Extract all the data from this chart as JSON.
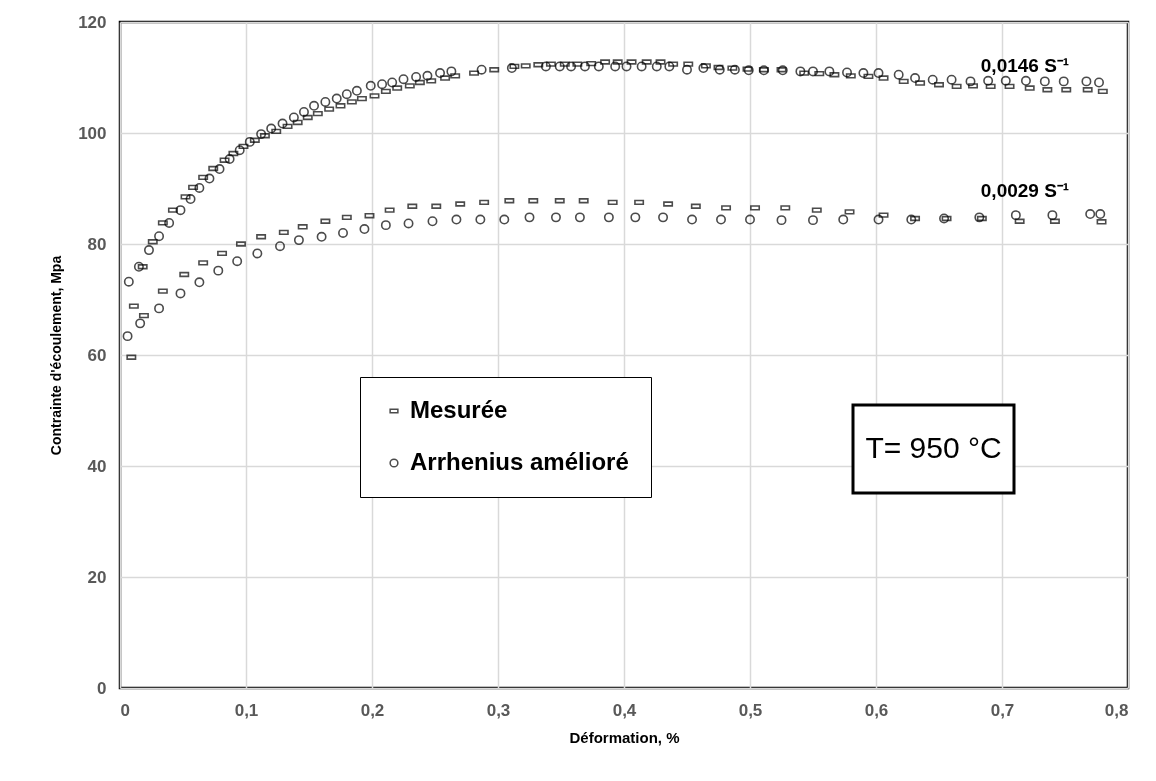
{
  "chart_data": {
    "type": "scatter",
    "xlabel": "Déformation, %",
    "ylabel": "Contrainte d'écoulement, Mpa",
    "xlim": [
      0,
      0.8
    ],
    "ylim": [
      0,
      120
    ],
    "xticks": [
      0,
      {
        "value": 0.1,
        "label": "0,1"
      },
      {
        "value": 0.2,
        "label": "0,2"
      },
      {
        "value": 0.3,
        "label": "0,3"
      },
      {
        "value": 0.4,
        "label": "0,4"
      },
      {
        "value": 0.5,
        "label": "0,5"
      },
      {
        "value": 0.6,
        "label": "0,6"
      },
      {
        "value": 0.7,
        "label": "0,7"
      },
      {
        "value": 0.8,
        "label": "0,8"
      }
    ],
    "yticks": [
      0,
      20,
      40,
      60,
      80,
      100,
      120
    ],
    "grid": true,
    "legend": "left",
    "annotations": [
      "0,0146 S⁻¹",
      "0,0029 S⁻¹",
      "T= 950 °C"
    ],
    "series": [
      {
        "name": "Mesurée",
        "color": "#000000",
        "marker": "square",
        "x": [
          0.011,
          0.018,
          0.026,
          0.034,
          0.042,
          0.052,
          0.058,
          0.066,
          0.074,
          0.083,
          0.09,
          0.098,
          0.107,
          0.115,
          0.124,
          0.133,
          0.141,
          0.149,
          0.157,
          0.166,
          0.175,
          0.184,
          0.192,
          0.202,
          0.211,
          0.22,
          0.23,
          0.238,
          0.247,
          0.258,
          0.266,
          0.281,
          0.297,
          0.313,
          0.322,
          0.332,
          0.342,
          0.353,
          0.363,
          0.374,
          0.385,
          0.395,
          0.406,
          0.418,
          0.429,
          0.439,
          0.451,
          0.465,
          0.475,
          0.486,
          0.498,
          0.511,
          0.525,
          0.543,
          0.555,
          0.567,
          0.58,
          0.594,
          0.606,
          0.622,
          0.635,
          0.65,
          0.664,
          0.677,
          0.691,
          0.706,
          0.722,
          0.736,
          0.751,
          0.768,
          0.78
        ],
        "values": [
          68.8,
          75.9,
          80.4,
          83.8,
          86.1,
          88.5,
          90.2,
          92.0,
          93.6,
          95.1,
          96.3,
          97.6,
          98.7,
          99.5,
          100.3,
          101.2,
          101.9,
          102.8,
          103.5,
          104.3,
          104.9,
          105.6,
          106.2,
          106.7,
          107.5,
          108.1,
          108.5,
          109.1,
          109.4,
          109.9,
          110.3,
          110.8,
          111.4,
          112.0,
          112.1,
          112.3,
          112.4,
          112.4,
          112.4,
          112.5,
          112.8,
          112.8,
          112.8,
          112.8,
          112.8,
          112.4,
          112.4,
          112.1,
          111.8,
          111.7,
          111.5,
          111.4,
          111.4,
          110.8,
          110.7,
          110.5,
          110.3,
          110.2,
          109.9,
          109.3,
          109.0,
          108.7,
          108.4,
          108.5,
          108.4,
          108.4,
          108.1,
          107.8,
          107.8,
          107.8,
          107.5
        ]
      },
      {
        "name": "Arrhenius amélioré",
        "color": "#000000",
        "marker": "circle",
        "x": [
          0.007,
          0.015,
          0.023,
          0.031,
          0.039,
          0.048,
          0.056,
          0.063,
          0.071,
          0.079,
          0.087,
          0.095,
          0.103,
          0.112,
          0.12,
          0.129,
          0.138,
          0.146,
          0.154,
          0.163,
          0.172,
          0.18,
          0.188,
          0.199,
          0.208,
          0.216,
          0.225,
          0.235,
          0.244,
          0.254,
          0.263,
          0.287,
          0.311,
          0.338,
          0.349,
          0.358,
          0.369,
          0.38,
          0.393,
          0.402,
          0.414,
          0.426,
          0.436,
          0.45,
          0.463,
          0.476,
          0.488,
          0.499,
          0.511,
          0.526,
          0.54,
          0.55,
          0.563,
          0.577,
          0.59,
          0.602,
          0.618,
          0.631,
          0.645,
          0.66,
          0.675,
          0.689,
          0.703,
          0.719,
          0.734,
          0.749,
          0.767,
          0.777
        ],
        "values": [
          73.2,
          75.9,
          78.9,
          81.4,
          83.8,
          86.1,
          88.1,
          90.1,
          91.8,
          93.5,
          95.3,
          96.9,
          98.4,
          99.8,
          100.8,
          101.7,
          102.8,
          103.8,
          104.9,
          105.6,
          106.2,
          107.0,
          107.6,
          108.5,
          108.8,
          109.1,
          109.7,
          110.1,
          110.3,
          110.8,
          111.1,
          111.4,
          111.7,
          112.0,
          112.0,
          112.0,
          112.0,
          112.0,
          112.0,
          112.0,
          112.0,
          112.0,
          112.0,
          111.4,
          111.7,
          111.4,
          111.4,
          111.3,
          111.3,
          111.3,
          111.1,
          111.1,
          111.1,
          110.9,
          110.8,
          110.8,
          110.5,
          109.9,
          109.6,
          109.6,
          109.3,
          109.4,
          109.4,
          109.4,
          109.3,
          109.3,
          109.3,
          109.1
        ]
      },
      {
        "color": "#000000",
        "marker": "square",
        "x": [
          0.009,
          0.019,
          0.034,
          0.051,
          0.066,
          0.081,
          0.096,
          0.112,
          0.13,
          0.145,
          0.163,
          0.18,
          0.198,
          0.214,
          0.232,
          0.251,
          0.27,
          0.289,
          0.309,
          0.328,
          0.349,
          0.368,
          0.391,
          0.412,
          0.435,
          0.457,
          0.481,
          0.504,
          0.528,
          0.553,
          0.579,
          0.606,
          0.631,
          0.656,
          0.684,
          0.714,
          0.742,
          0.779
        ],
        "values": [
          59.6,
          67.1,
          71.5,
          74.5,
          76.6,
          78.3,
          80.0,
          81.3,
          82.1,
          83.1,
          84.1,
          84.8,
          85.1,
          86.1,
          86.8,
          86.8,
          87.2,
          87.5,
          87.8,
          87.8,
          87.8,
          87.8,
          87.5,
          87.5,
          87.2,
          86.8,
          86.5,
          86.5,
          86.5,
          86.1,
          85.8,
          85.2,
          84.6,
          84.6,
          84.6,
          84.1,
          84.1,
          84.0
        ]
      },
      {
        "color": "#000000",
        "marker": "circle",
        "x": [
          0.006,
          0.016,
          0.031,
          0.048,
          0.063,
          0.078,
          0.093,
          0.109,
          0.127,
          0.142,
          0.16,
          0.177,
          0.194,
          0.211,
          0.229,
          0.248,
          0.267,
          0.286,
          0.305,
          0.325,
          0.346,
          0.365,
          0.388,
          0.409,
          0.431,
          0.454,
          0.477,
          0.5,
          0.525,
          0.55,
          0.574,
          0.602,
          0.628,
          0.654,
          0.682,
          0.711,
          0.74,
          0.77,
          0.778
        ],
        "values": [
          63.4,
          65.7,
          68.4,
          71.1,
          73.1,
          75.2,
          76.9,
          78.3,
          79.6,
          80.7,
          81.3,
          82.0,
          82.7,
          83.4,
          83.7,
          84.1,
          84.4,
          84.4,
          84.4,
          84.8,
          84.8,
          84.8,
          84.8,
          84.8,
          84.8,
          84.4,
          84.4,
          84.4,
          84.3,
          84.3,
          84.4,
          84.4,
          84.4,
          84.6,
          84.8,
          85.2,
          85.2,
          85.4,
          85.4
        ]
      }
    ]
  }
}
